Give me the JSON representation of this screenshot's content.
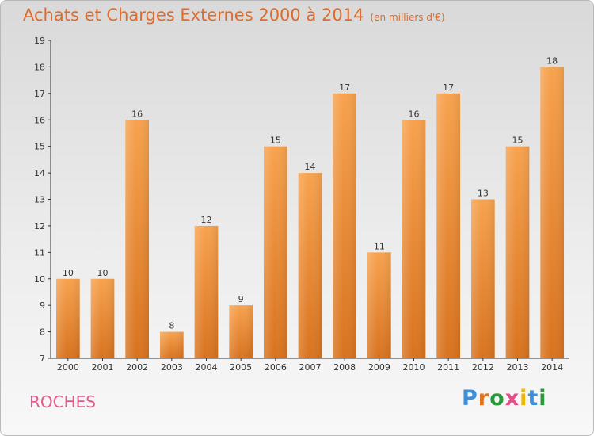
{
  "header": {
    "title": "Achats et Charges Externes 2000 à 2014",
    "unit": "(en milliers d'€)"
  },
  "footer": {
    "location": "ROCHES",
    "brand_letters": [
      "P",
      "r",
      "o",
      "x",
      "i",
      "t",
      "i"
    ],
    "brand_colors": [
      "#3c8fd8",
      "#e2731f",
      "#2c9a3c",
      "#e84a8a",
      "#f0b700",
      "#3c8fd8",
      "#2c9a3c"
    ]
  },
  "chart_data": {
    "type": "bar",
    "categories": [
      "2000",
      "2001",
      "2002",
      "2003",
      "2004",
      "2005",
      "2006",
      "2007",
      "2008",
      "2009",
      "2010",
      "2011",
      "2012",
      "2013",
      "2014"
    ],
    "values": [
      10,
      10,
      16,
      8,
      12,
      9,
      15,
      14,
      17,
      11,
      16,
      17,
      13,
      15,
      18
    ],
    "ylim": [
      7,
      19
    ],
    "yticks": [
      7,
      8,
      9,
      10,
      11,
      12,
      13,
      14,
      15,
      16,
      17,
      18,
      19
    ],
    "grid": false,
    "bar_color_top": "#f7a24e",
    "bar_color_bottom": "#d8731f",
    "title_color": "#e06a2a",
    "location_color": "#e05a8c"
  }
}
